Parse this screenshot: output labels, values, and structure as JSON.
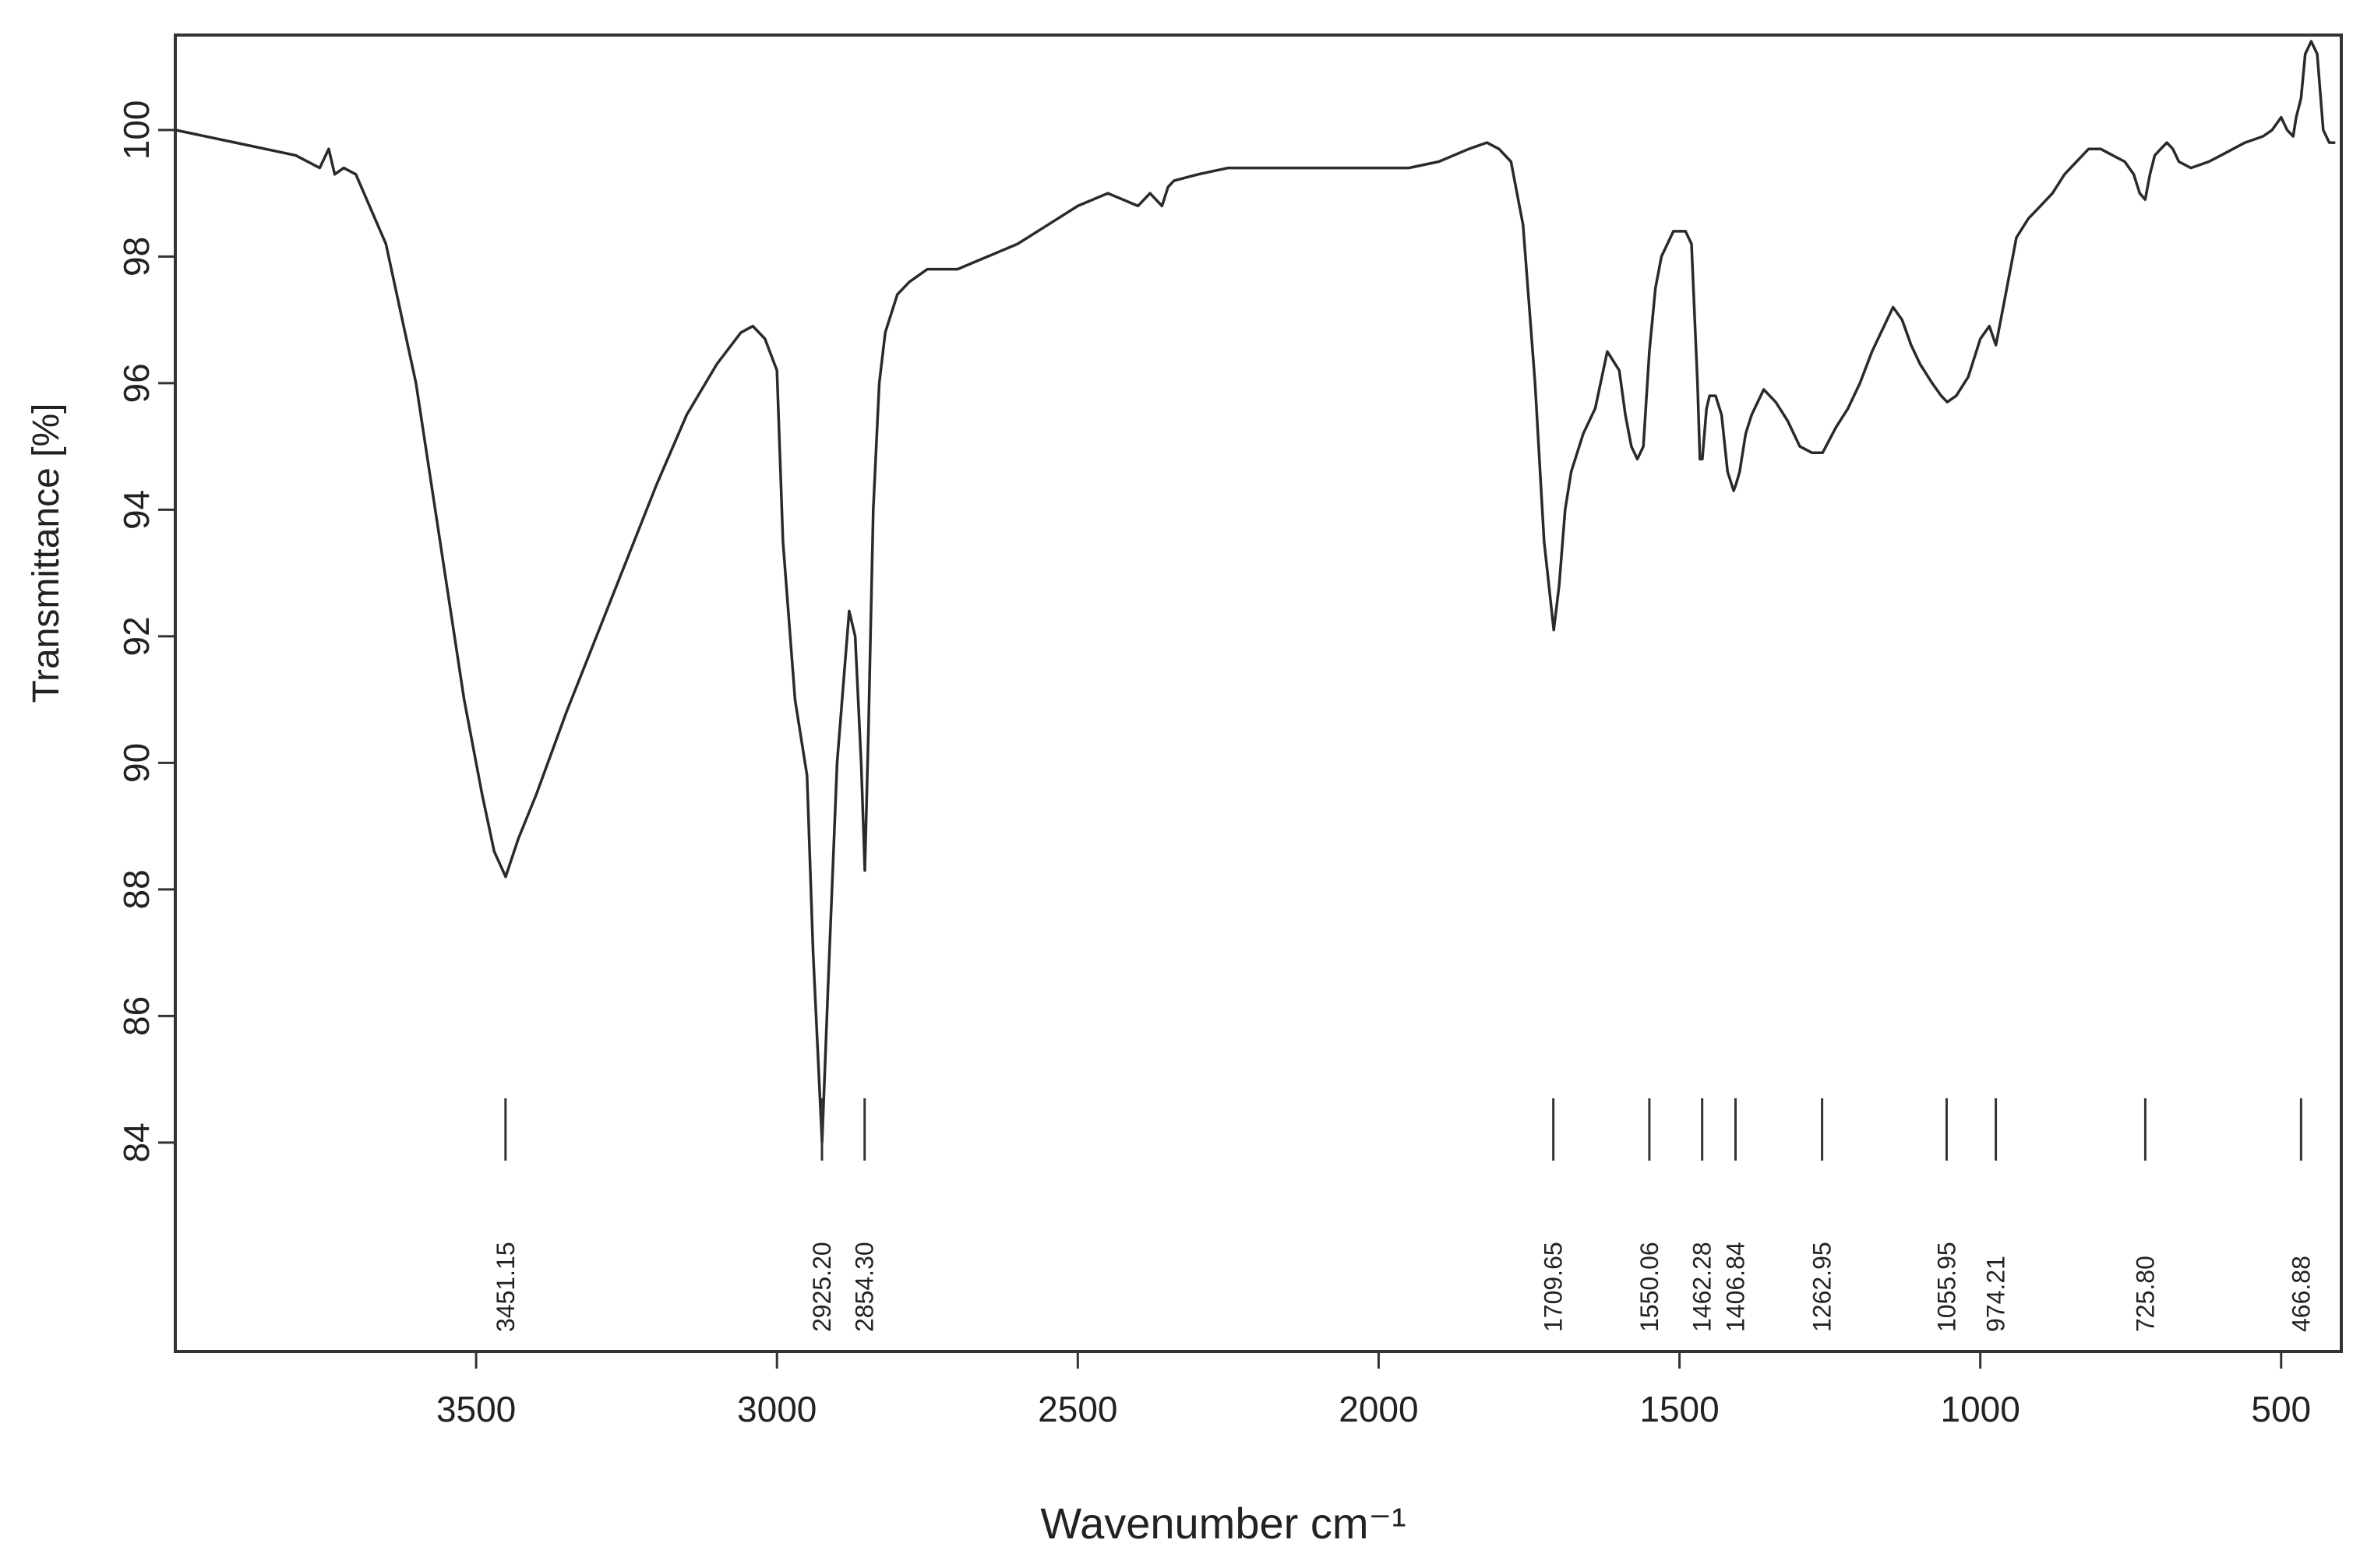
{
  "chart_data": {
    "type": "line",
    "title": "",
    "xlabel": "Wavenumber cm⁻¹",
    "ylabel": "Transmittance [%]",
    "x_reversed": true,
    "xlim": [
      4000,
      400
    ],
    "ylim": [
      80.7,
      101.5
    ],
    "x_ticks": [
      3500,
      3000,
      2500,
      2000,
      1500,
      1000,
      500
    ],
    "x_tick_labels": [
      "3500",
      "3000",
      "2500",
      "2000",
      "1500",
      "1000",
      "500"
    ],
    "y_ticks": [
      84,
      86,
      88,
      90,
      92,
      94,
      96,
      98,
      100
    ],
    "y_tick_labels": [
      "84",
      "86",
      "88",
      "90",
      "92",
      "94",
      "96",
      "98",
      "100"
    ],
    "grid": false,
    "line_color": "#2a2a2a",
    "series": [
      {
        "x": [
          4000,
          3900,
          3800,
          3760,
          3745,
          3735,
          3720,
          3700,
          3650,
          3600,
          3560,
          3520,
          3490,
          3470,
          3451,
          3430,
          3400,
          3350,
          3300,
          3250,
          3200,
          3150,
          3100,
          3060,
          3040,
          3020,
          3000,
          2990,
          2970,
          2950,
          2940,
          2925,
          2915,
          2900,
          2880,
          2870,
          2860,
          2854,
          2848,
          2840,
          2830,
          2820,
          2800,
          2780,
          2750,
          2700,
          2650,
          2600,
          2550,
          2500,
          2450,
          2400,
          2380,
          2360,
          2350,
          2340,
          2300,
          2250,
          2200,
          2150,
          2100,
          2050,
          2000,
          1950,
          1900,
          1850,
          1820,
          1800,
          1780,
          1760,
          1740,
          1725,
          1709,
          1700,
          1690,
          1680,
          1660,
          1640,
          1620,
          1600,
          1590,
          1580,
          1570,
          1560,
          1550,
          1540,
          1530,
          1510,
          1490,
          1480,
          1470,
          1466,
          1462,
          1455,
          1450,
          1440,
          1430,
          1420,
          1410,
          1406,
          1400,
          1390,
          1380,
          1360,
          1340,
          1320,
          1300,
          1280,
          1262,
          1240,
          1220,
          1200,
          1180,
          1160,
          1145,
          1130,
          1115,
          1100,
          1080,
          1065,
          1055,
          1040,
          1020,
          1000,
          985,
          974,
          960,
          940,
          920,
          900,
          880,
          860,
          840,
          820,
          800,
          780,
          760,
          745,
          735,
          726,
          718,
          710,
          700,
          690,
          680,
          670,
          650,
          620,
          600,
          560,
          530,
          515,
          500,
          490,
          480,
          475,
          467,
          460,
          450,
          440,
          430,
          420,
          410
        ],
        "y": [
          100.0,
          99.8,
          99.6,
          99.4,
          99.7,
          99.3,
          99.4,
          99.3,
          98.2,
          96.0,
          93.5,
          91.0,
          89.5,
          88.6,
          88.2,
          88.8,
          89.5,
          90.8,
          92.0,
          93.2,
          94.4,
          95.5,
          96.3,
          96.8,
          96.9,
          96.7,
          96.2,
          93.5,
          91.0,
          89.8,
          87.0,
          84.0,
          86.5,
          90.0,
          92.4,
          92.0,
          90.0,
          88.3,
          90.5,
          94.0,
          96.0,
          96.8,
          97.4,
          97.6,
          97.8,
          97.8,
          98.0,
          98.2,
          98.5,
          98.8,
          99.0,
          98.8,
          99.0,
          98.8,
          99.1,
          99.2,
          99.3,
          99.4,
          99.4,
          99.4,
          99.4,
          99.4,
          99.4,
          99.4,
          99.5,
          99.7,
          99.8,
          99.7,
          99.5,
          98.5,
          96.0,
          93.5,
          92.1,
          92.8,
          94.0,
          94.6,
          95.2,
          95.6,
          96.5,
          96.2,
          95.5,
          95.0,
          94.8,
          95.0,
          96.5,
          97.5,
          98.0,
          98.4,
          98.4,
          98.2,
          96.0,
          94.8,
          94.8,
          95.6,
          95.8,
          95.8,
          95.5,
          94.6,
          94.3,
          94.4,
          94.6,
          95.2,
          95.5,
          95.9,
          95.7,
          95.4,
          95.0,
          94.9,
          94.9,
          95.3,
          95.6,
          96.0,
          96.5,
          96.9,
          97.2,
          97.0,
          96.6,
          96.3,
          96.0,
          95.8,
          95.7,
          95.8,
          96.1,
          96.7,
          96.9,
          96.6,
          97.3,
          98.3,
          98.6,
          98.8,
          99.0,
          99.3,
          99.5,
          99.7,
          99.7,
          99.6,
          99.5,
          99.3,
          99.0,
          98.9,
          99.3,
          99.6,
          99.7,
          99.8,
          99.7,
          99.5,
          99.4,
          99.5,
          99.6,
          99.8,
          99.9,
          100.0,
          100.2,
          100.0,
          99.9,
          100.2,
          100.5,
          101.2,
          101.4,
          101.2,
          100.0,
          99.8,
          99.8
        ]
      }
    ],
    "peak_markers": [
      {
        "x": 3451.15,
        "label": "3451.15"
      },
      {
        "x": 2925.2,
        "label": "2925.20"
      },
      {
        "x": 2854.3,
        "label": "2854.30"
      },
      {
        "x": 1709.65,
        "label": "1709.65"
      },
      {
        "x": 1550.06,
        "label": "1550.06"
      },
      {
        "x": 1462.28,
        "label": "1462.28"
      },
      {
        "x": 1406.84,
        "label": "1406.84"
      },
      {
        "x": 1262.95,
        "label": "1262.95"
      },
      {
        "x": 1055.95,
        "label": "1055.95"
      },
      {
        "x": 974.21,
        "label": "974.21"
      },
      {
        "x": 725.8,
        "label": "725.80"
      },
      {
        "x": 466.88,
        "label": "466.88"
      }
    ]
  }
}
